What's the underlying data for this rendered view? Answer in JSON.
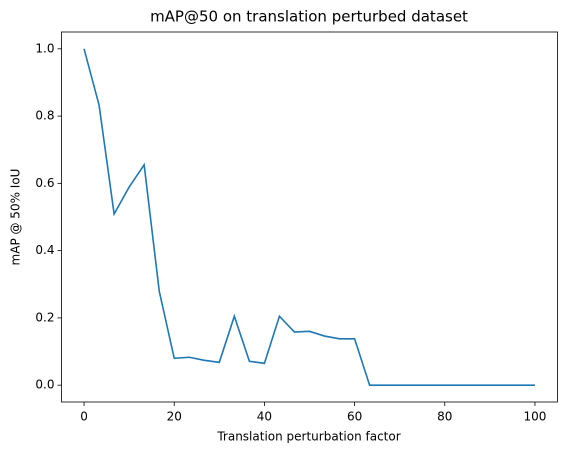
{
  "chart_data": {
    "type": "line",
    "title": "mAP@50 on translation perturbed dataset",
    "x_label": "Translation perturbation factor",
    "y_label": "mAP @ 50% IoU",
    "x": [
      0,
      3.33,
      6.67,
      10,
      13.33,
      16.67,
      20,
      23.33,
      26.67,
      30,
      33.33,
      36.67,
      40,
      43.33,
      46.67,
      50,
      53.33,
      56.67,
      60,
      63.33,
      66.67,
      70,
      73.33,
      76.67,
      80,
      83.33,
      86.67,
      90,
      93.33,
      96.67,
      100
    ],
    "series": [
      {
        "name": "mAP@50",
        "color": "#1f77b4",
        "values": [
          1.0,
          0.833,
          0.509,
          0.589,
          0.655,
          0.28,
          0.08,
          0.083,
          0.074,
          0.068,
          0.205,
          0.071,
          0.065,
          0.205,
          0.158,
          0.16,
          0.146,
          0.138,
          0.138,
          0.0,
          0.0,
          0.0,
          0.0,
          0.0,
          0.0,
          0.0,
          0.0,
          0.0,
          0.0,
          0.0,
          0.0
        ]
      }
    ],
    "xlim": [
      -5,
      105
    ],
    "ylim": [
      -0.05,
      1.05
    ],
    "xticks": [
      0,
      20,
      40,
      60,
      80,
      100
    ],
    "yticks": [
      {
        "value": 0,
        "label": "0.0"
      },
      {
        "value": 0.2,
        "label": "0.2"
      },
      {
        "value": 0.4,
        "label": "0.4"
      },
      {
        "value": 0.6,
        "label": "0.6"
      },
      {
        "value": 0.8,
        "label": "0.8"
      },
      {
        "value": 1,
        "label": "1.0"
      }
    ]
  }
}
